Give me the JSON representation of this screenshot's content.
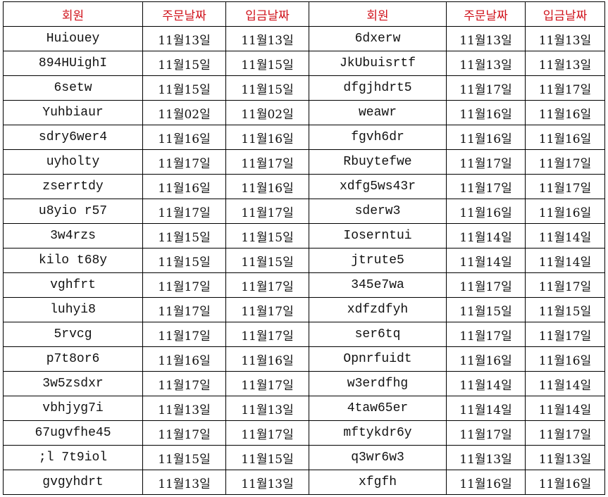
{
  "headers": [
    "회원",
    "주문날짜",
    "입금날짜",
    "회원",
    "주문날짜",
    "입금날짜"
  ],
  "colors": {
    "header_text": "#d0121b",
    "grid": "#000000"
  },
  "rows": [
    [
      "Huiouey",
      "11월13일",
      "11월13일",
      "6dxerw",
      "11월13일",
      "11월13일"
    ],
    [
      "894HUighI",
      "11월15일",
      "11월15일",
      "JkUbuisrtf",
      "11월13일",
      "11월13일"
    ],
    [
      "6setw",
      "11월15일",
      "11월15일",
      "dfgjhdrt5",
      "11월17일",
      "11월17일"
    ],
    [
      "Yuhbiaur",
      "11월02일",
      "11월02일",
      "weawr",
      "11월16일",
      "11월16일"
    ],
    [
      "sdry6wer4",
      "11월16일",
      "11월16일",
      "fgvh6dr",
      "11월16일",
      "11월16일"
    ],
    [
      "uyholty",
      "11월17일",
      "11월17일",
      "Rbuytefwe",
      "11월17일",
      "11월17일"
    ],
    [
      "zserrtdy",
      "11월16일",
      "11월16일",
      "xdfg5ws43r",
      "11월17일",
      "11월17일"
    ],
    [
      "u8yio r57",
      "11월17일",
      "11월17일",
      "sderw3",
      "11월16일",
      "11월16일"
    ],
    [
      "3w4rzs",
      "11월15일",
      "11월15일",
      "Ioserntui",
      "11월14일",
      "11월14일"
    ],
    [
      "kilo t68y",
      "11월15일",
      "11월15일",
      "jtrute5",
      "11월14일",
      "11월14일"
    ],
    [
      "vghfrt",
      "11월17일",
      "11월17일",
      "345e7wa",
      "11월17일",
      "11월17일"
    ],
    [
      "luhyi8",
      "11월17일",
      "11월17일",
      "xdfzdfyh",
      "11월15일",
      "11월15일"
    ],
    [
      "5rvcg",
      "11월17일",
      "11월17일",
      "ser6tq",
      "11월17일",
      "11월17일"
    ],
    [
      "p7t8or6",
      "11월16일",
      "11월16일",
      "Opnrfuidt",
      "11월16일",
      "11월16일"
    ],
    [
      "3w5zsdxr",
      "11월17일",
      "11월17일",
      "w3erdfhg",
      "11월14일",
      "11월14일"
    ],
    [
      "vbhjyg7i",
      "11월13일",
      "11월13일",
      "4taw65er",
      "11월14일",
      "11월14일"
    ],
    [
      "67ugvfhe45",
      "11월17일",
      "11월17일",
      "mftykdr6y",
      "11월17일",
      "11월17일"
    ],
    [
      ";l 7t9iol",
      "11월15일",
      "11월15일",
      "q3wr6w3",
      "11월13일",
      "11월13일"
    ],
    [
      "gvgyhdrt",
      "11월13일",
      "11월13일",
      "xfgfh",
      "11월16일",
      "11월16일"
    ]
  ]
}
